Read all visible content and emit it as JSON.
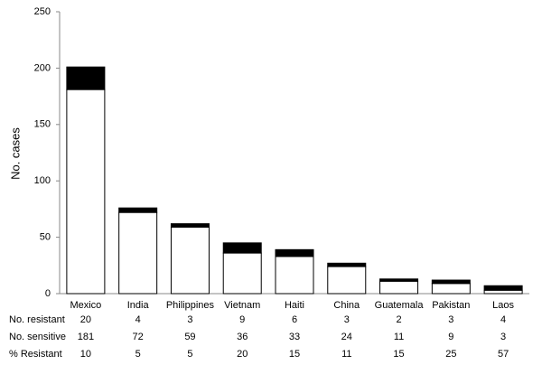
{
  "chart_data": {
    "type": "stacked_bar",
    "y_label": "No. cases",
    "categories": [
      "Mexico",
      "India",
      "Philippines",
      "Vietnam",
      "Haiti",
      "China",
      "Guatemala",
      "Pakistan",
      "Laos"
    ],
    "series": [
      {
        "name": "No. resistant",
        "color": "#000000",
        "values": [
          20,
          4,
          3,
          9,
          6,
          3,
          2,
          3,
          4
        ]
      },
      {
        "name": "No. sensitive",
        "color": "#ffffff",
        "values": [
          181,
          72,
          59,
          36,
          33,
          24,
          11,
          9,
          3
        ]
      }
    ],
    "percent_row": {
      "name": "% Resistant",
      "values": [
        10,
        5,
        5,
        20,
        15,
        11,
        15,
        25,
        57
      ]
    },
    "ylim": [
      0,
      250
    ],
    "yticks": [
      0,
      50,
      100,
      150,
      200,
      250
    ],
    "grid": false
  }
}
